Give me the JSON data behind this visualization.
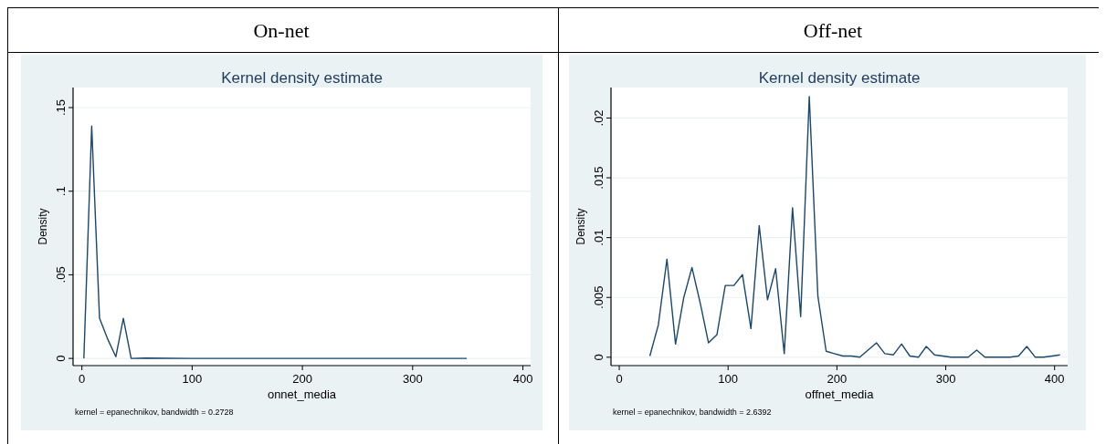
{
  "chart_data": [
    {
      "type": "line",
      "title": "On-net",
      "subtitle": "Kernel density estimate",
      "xlabel": "onnet_media",
      "ylabel": "Density",
      "annotations": [
        "kernel = epanechnikov, bandwidth = 0.2728"
      ],
      "series": [
        {
          "color": "#1a476f",
          "x": [
            1.8,
            8.9,
            16,
            23.1,
            30.8,
            37.6,
            44.7,
            58,
            100,
            200,
            300,
            349
          ],
          "values": [
            0,
            0.139,
            0.024,
            0.012,
            0.001,
            0.024,
            0,
            0.0002,
            0,
            0,
            0,
            0
          ]
        }
      ],
      "xlim": [
        -8,
        407
      ],
      "ylim": [
        -0.0043,
        0.162
      ],
      "xticks": [
        0,
        100,
        200,
        300,
        400
      ],
      "yticks": [
        0,
        {
          "value": 0.05,
          "label": ".05"
        },
        {
          "value": 0.1,
          "label": ".1"
        },
        {
          "value": 0.15,
          "label": ".15"
        }
      ],
      "grid": "y",
      "marker": "none",
      "line_style": "solid"
    },
    {
      "type": "line",
      "title": "Off-net",
      "subtitle": "Kernel density estimate",
      "xlabel": "offnet_media",
      "ylabel": "Density",
      "annotations": [
        "kernel = epanechnikov, bandwidth = 2.6392"
      ],
      "series": [
        {
          "color": "#1a476f",
          "x": [
            28.1,
            35.9,
            43.8,
            51.7,
            59.3,
            66.8,
            74.7,
            82.0,
            89.8,
            97.4,
            105.3,
            113.2,
            121.0,
            128.6,
            136.2,
            143.7,
            151.6,
            159.2,
            166.7,
            174.6,
            182.5,
            190.1,
            197.6,
            205.5,
            213.1,
            221.0,
            236.4,
            244.0,
            251.9,
            259.4,
            267.0,
            274.9,
            282.1,
            289.7,
            297.2,
            304.8,
            312.7,
            320.6,
            328.4,
            336.0,
            343.9,
            351.5,
            359.0,
            366.9,
            374.5,
            382.3,
            389.9,
            397.8,
            405.0
          ],
          "values": [
            0.0001,
            0.0027,
            0.0082,
            0.0011,
            0.005,
            0.0075,
            0.0044,
            0.0012,
            0.0019,
            0.006,
            0.006,
            0.0069,
            0.0024,
            0.011,
            0.0048,
            0.0074,
            0.0003,
            0.0125,
            0.0034,
            0.0218,
            0.0051,
            0.0005,
            0.0003,
            0.0001,
            0.0001,
            0,
            0.0012,
            0.0003,
            0.0002,
            0.0011,
            0.0001,
            0,
            0.0009,
            0.0002,
            0.0001,
            0,
            0,
            0,
            0.0006,
            0,
            0,
            0,
            0,
            0.0001,
            0.0009,
            0,
            0,
            0.0001,
            0.0002
          ]
        }
      ],
      "xlim": [
        -7.6,
        412
      ],
      "ylim": [
        -0.0007,
        0.02255
      ],
      "xticks": [
        0,
        100,
        200,
        300,
        400
      ],
      "yticks": [
        0,
        {
          "value": 0.005,
          "label": ".005"
        },
        {
          "value": 0.01,
          "label": ".01"
        },
        {
          "value": 0.015,
          "label": ".015"
        },
        {
          "value": 0.02,
          "label": ".02"
        }
      ],
      "grid": "y",
      "marker": "none",
      "line_style": "solid"
    }
  ]
}
